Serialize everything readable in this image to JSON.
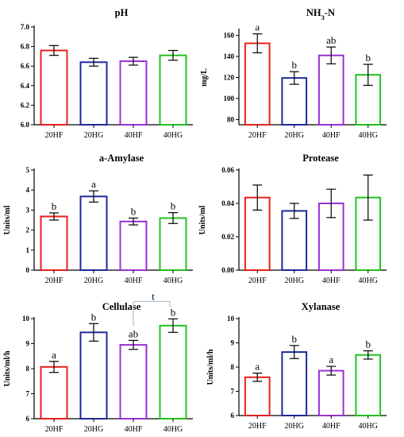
{
  "colors": {
    "20HF": "#e8211c",
    "20HG": "#1d2a9a",
    "40HF": "#9b2fd6",
    "40HG": "#23c11f",
    "annotation_line": "#9fb4c8"
  },
  "chart_data": [
    {
      "type": "bar",
      "title": "pH",
      "xlabel": "",
      "ylabel": "",
      "categories": [
        "20HF",
        "20HG",
        "40HF",
        "40HG"
      ],
      "values": [
        6.76,
        6.64,
        6.65,
        6.71
      ],
      "errors": [
        0.05,
        0.04,
        0.04,
        0.05
      ],
      "letters": [
        "",
        "",
        "",
        ""
      ],
      "ylim": [
        6.0,
        7.0
      ],
      "yticks": [
        "6.0",
        "6.2",
        "6.4",
        "6.6",
        "6.8",
        "7.0"
      ]
    },
    {
      "type": "bar",
      "title": "NH3-N",
      "xlabel": "",
      "ylabel": "mg/L",
      "categories": [
        "20HF",
        "20HG",
        "40HF",
        "40HG"
      ],
      "values": [
        152.5,
        119.5,
        141,
        122.5
      ],
      "errors": [
        9,
        6,
        8,
        10
      ],
      "letters": [
        "a",
        "b",
        "ab",
        "b"
      ],
      "ylim": [
        75,
        165
      ],
      "yticks": [
        "80",
        "100",
        "120",
        "140",
        "160"
      ]
    },
    {
      "type": "bar",
      "title": "a-Amylase",
      "xlabel": "",
      "ylabel": "Units/ml",
      "categories": [
        "20HF",
        "20HG",
        "40HF",
        "40HG"
      ],
      "values": [
        2.68,
        3.68,
        2.43,
        2.6
      ],
      "errors": [
        0.18,
        0.28,
        0.17,
        0.27
      ],
      "letters": [
        "b",
        "a",
        "b",
        "b"
      ],
      "ylim": [
        0,
        5
      ],
      "yticks": [
        "0",
        "1",
        "2",
        "3",
        "4",
        "5"
      ]
    },
    {
      "type": "bar",
      "title": "Protease",
      "xlabel": "",
      "ylabel": "Units/ml",
      "categories": [
        "20HF",
        "20HG",
        "40HF",
        "40HG"
      ],
      "values": [
        0.0435,
        0.0355,
        0.04,
        0.0435
      ],
      "errors": [
        0.0075,
        0.0045,
        0.0085,
        0.0135
      ],
      "letters": [
        "",
        "",
        "",
        ""
      ],
      "ylim": [
        0,
        0.06
      ],
      "yticks": [
        "0.00",
        "0.02",
        "0.04",
        "0.06"
      ]
    },
    {
      "type": "bar",
      "title": "Cellulase",
      "xlabel": "",
      "ylabel": "Units/ml/h",
      "categories": [
        "20HF",
        "20HG",
        "40HF",
        "40HG"
      ],
      "values": [
        8.07,
        9.45,
        8.95,
        9.72
      ],
      "errors": [
        0.22,
        0.35,
        0.18,
        0.27
      ],
      "letters": [
        "a",
        "b",
        "ab",
        "b"
      ],
      "annotation": {
        "text": "t",
        "from": "40HF",
        "to": "40HG"
      },
      "ylim": [
        6,
        10
      ],
      "yticks": [
        "6",
        "7",
        "8",
        "9",
        "10"
      ]
    },
    {
      "type": "bar",
      "title": "Xylanase",
      "xlabel": "",
      "ylabel": "Units/ml/h",
      "categories": [
        "20HF",
        "20HG",
        "40HF",
        "40HG"
      ],
      "values": [
        7.58,
        8.62,
        7.85,
        8.5
      ],
      "errors": [
        0.17,
        0.27,
        0.18,
        0.17
      ],
      "letters": [
        "a",
        "b",
        "a",
        "b"
      ],
      "ylim": [
        6,
        10
      ],
      "yticks": [
        "6",
        "7",
        "8",
        "9",
        "10"
      ]
    }
  ]
}
